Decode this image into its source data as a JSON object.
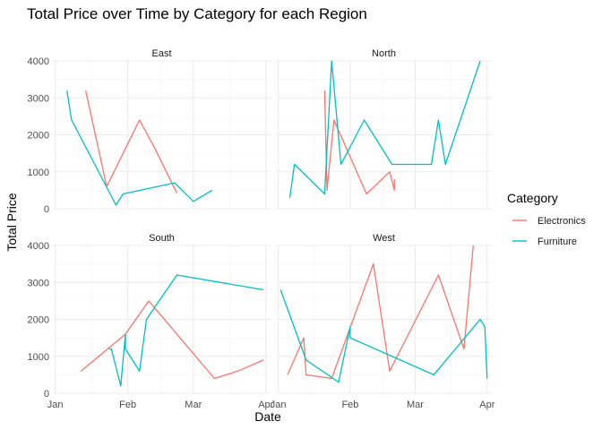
{
  "chart_data": {
    "type": "line",
    "title": "Total Price over Time by Category for each Region",
    "xlabel": "Date",
    "ylabel": "Total Price",
    "legend": {
      "title": "Category",
      "position": "right",
      "entries": [
        {
          "name": "Electronics",
          "color": "#F8766D"
        },
        {
          "name": "Furniture",
          "color": "#00BFC4"
        }
      ]
    },
    "x_ticks": [
      {
        "date": "2023-01-01",
        "label": "Jan"
      },
      {
        "date": "2023-02-01",
        "label": "Feb"
      },
      {
        "date": "2023-03-01",
        "label": "Mar"
      },
      {
        "date": "2023-04-01",
        "label": "Apr"
      }
    ],
    "y_ticks": [
      0,
      1000,
      2000,
      3000,
      4000
    ],
    "xlim": [
      "2022-12-31",
      "2023-04-03"
    ],
    "ylim": [
      0,
      4000
    ],
    "grid": true,
    "facets": [
      {
        "region": "East",
        "series": [
          {
            "name": "Electronics",
            "x": [
              "2023-01-14",
              "2023-01-23",
              "2023-02-06",
              "2023-02-12",
              "2023-02-22"
            ],
            "y": [
              3200,
              600,
              2400,
              1700,
              420
            ]
          },
          {
            "name": "Furniture",
            "x": [
              "2023-01-06",
              "2023-01-08",
              "2023-01-27",
              "2023-01-30",
              "2023-02-21",
              "2023-03-01",
              "2023-03-09"
            ],
            "y": [
              3200,
              2400,
              100,
              400,
              700,
              200,
              500
            ]
          }
        ]
      },
      {
        "region": "North",
        "series": [
          {
            "name": "Electronics",
            "x": [
              "2023-01-21",
              "2023-01-22",
              "2023-01-25",
              "2023-02-08",
              "2023-02-18",
              "2023-02-20",
              "2023-02-20"
            ],
            "y": [
              3200,
              500,
              2400,
              400,
              1000,
              500,
              800
            ]
          },
          {
            "name": "Furniture",
            "x": [
              "2023-01-06",
              "2023-01-08",
              "2023-01-21",
              "2023-01-24",
              "2023-01-28",
              "2023-02-07",
              "2023-02-19",
              "2023-03-08",
              "2023-03-11",
              "2023-03-14",
              "2023-03-29"
            ],
            "y": [
              300,
              1200,
              400,
              4000,
              1200,
              2400,
              1200,
              1200,
              2400,
              1200,
              4000
            ]
          }
        ]
      },
      {
        "region": "South",
        "series": [
          {
            "name": "Electronics",
            "x": [
              "2023-01-12",
              "2023-01-31",
              "2023-02-10",
              "2023-03-10",
              "2023-03-20",
              "2023-03-31"
            ],
            "y": [
              600,
              1600,
              2500,
              400,
              600,
              900
            ]
          },
          {
            "name": "Furniture",
            "x": [
              "2023-01-24",
              "2023-01-25",
              "2023-01-29",
              "2023-01-31",
              "2023-01-31",
              "2023-02-06",
              "2023-02-09",
              "2023-02-22",
              "2023-03-31"
            ],
            "y": [
              1200,
              1200,
              200,
              1600,
              1200,
              600,
              2000,
              3200,
              2800
            ]
          }
        ]
      },
      {
        "region": "West",
        "series": [
          {
            "name": "Electronics",
            "x": [
              "2023-01-05",
              "2023-01-12",
              "2023-01-13",
              "2023-01-24",
              "2023-02-11",
              "2023-02-18",
              "2023-03-11",
              "2023-03-22",
              "2023-03-26"
            ],
            "y": [
              500,
              1500,
              500,
              400,
              3500,
              600,
              3200,
              1200,
              4000
            ]
          },
          {
            "name": "Furniture",
            "x": [
              "2023-01-02",
              "2023-01-13",
              "2023-01-27",
              "2023-02-01",
              "2023-02-01",
              "2023-03-09",
              "2023-03-29",
              "2023-03-31",
              "2023-04-01"
            ],
            "y": [
              2800,
              900,
              300,
              1800,
              1500,
              500,
              2000,
              1800,
              400
            ]
          }
        ]
      }
    ]
  }
}
